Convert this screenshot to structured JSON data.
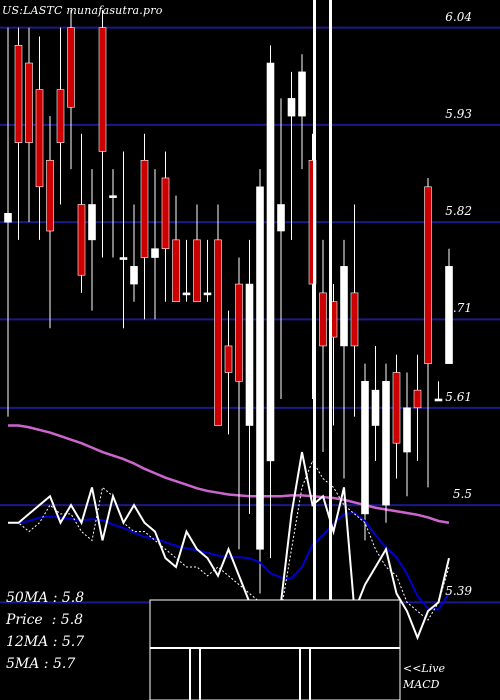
{
  "watermark": "US:LASTC munafasutra.pro",
  "colors": {
    "background": "#000000",
    "grid": "#1a1a8a",
    "up_candle": "#ffffff",
    "down_candle": "#cc0000",
    "ma_long": "#cc66cc",
    "ma_mid": "#0000cc",
    "ma_short": "#ffffff",
    "macd_panel": "#000000"
  },
  "info": {
    "ma50": "50MA : 5.8",
    "price": "Price  : 5.8",
    "ma12": "12MA : 5.7",
    "ma5": "5MA : 5.7"
  },
  "macd": {
    "live": "<<Live",
    "label": "MACD"
  },
  "chart_data": {
    "type": "candlestick",
    "ylim": [
      5.37,
      6.06
    ],
    "y_ticks": [
      "6.04",
      "5.93",
      "5.82",
      "5.71",
      "5.61",
      "5.5",
      "5.39"
    ],
    "y_tick_values": [
      6.04,
      5.93,
      5.82,
      5.71,
      5.61,
      5.5,
      5.39
    ],
    "candles": [
      {
        "o": 5.82,
        "c": 5.83,
        "h": 6.04,
        "l": 5.6,
        "up": true
      },
      {
        "o": 6.02,
        "c": 5.91,
        "h": 6.04,
        "l": 5.8,
        "up": false
      },
      {
        "o": 6.0,
        "c": 5.91,
        "h": 6.04,
        "l": 5.82,
        "up": false
      },
      {
        "o": 5.97,
        "c": 5.86,
        "h": 6.03,
        "l": 5.8,
        "up": false
      },
      {
        "o": 5.89,
        "c": 5.81,
        "h": 5.94,
        "l": 5.7,
        "up": false
      },
      {
        "o": 5.97,
        "c": 5.91,
        "h": 6.04,
        "l": 5.84,
        "up": false
      },
      {
        "o": 6.04,
        "c": 5.95,
        "h": 6.06,
        "l": 5.88,
        "up": false
      },
      {
        "o": 5.84,
        "c": 5.76,
        "h": 5.92,
        "l": 5.74,
        "up": false
      },
      {
        "o": 5.8,
        "c": 5.84,
        "h": 5.88,
        "l": 5.72,
        "up": true
      },
      {
        "o": 6.04,
        "c": 5.9,
        "h": 6.06,
        "l": 5.78,
        "up": false
      },
      {
        "o": 5.85,
        "c": 5.85,
        "h": 5.88,
        "l": 5.78,
        "up": true
      },
      {
        "o": 5.78,
        "c": 5.78,
        "h": 5.9,
        "l": 5.7,
        "up": true
      },
      {
        "o": 5.75,
        "c": 5.77,
        "h": 5.84,
        "l": 5.73,
        "up": true
      },
      {
        "o": 5.89,
        "c": 5.78,
        "h": 5.92,
        "l": 5.71,
        "up": false
      },
      {
        "o": 5.78,
        "c": 5.79,
        "h": 5.88,
        "l": 5.71,
        "up": true
      },
      {
        "o": 5.87,
        "c": 5.79,
        "h": 5.9,
        "l": 5.73,
        "up": false
      },
      {
        "o": 5.8,
        "c": 5.73,
        "h": 5.85,
        "l": 5.73,
        "up": false
      },
      {
        "o": 5.74,
        "c": 5.74,
        "h": 5.8,
        "l": 5.73,
        "up": true
      },
      {
        "o": 5.8,
        "c": 5.73,
        "h": 5.84,
        "l": 5.73,
        "up": false
      },
      {
        "o": 5.74,
        "c": 5.74,
        "h": 5.8,
        "l": 5.73,
        "up": true
      },
      {
        "o": 5.8,
        "c": 5.59,
        "h": 5.84,
        "l": 5.59,
        "up": false
      },
      {
        "o": 5.68,
        "c": 5.65,
        "h": 5.72,
        "l": 5.58,
        "up": false
      },
      {
        "o": 5.75,
        "c": 5.64,
        "h": 5.78,
        "l": 5.45,
        "up": false
      },
      {
        "o": 5.59,
        "c": 5.75,
        "h": 5.8,
        "l": 5.49,
        "up": true
      },
      {
        "o": 5.45,
        "c": 5.86,
        "h": 5.88,
        "l": 5.4,
        "up": true
      },
      {
        "o": 5.55,
        "c": 6.0,
        "h": 6.02,
        "l": 5.44,
        "up": true
      },
      {
        "o": 5.81,
        "c": 5.84,
        "h": 5.96,
        "l": 5.62,
        "up": true
      },
      {
        "o": 5.94,
        "c": 5.96,
        "h": 5.99,
        "l": 5.8,
        "up": true
      },
      {
        "o": 5.94,
        "c": 5.99,
        "h": 6.01,
        "l": 5.88,
        "up": true
      },
      {
        "o": 5.89,
        "c": 5.75,
        "h": 5.92,
        "l": 5.62,
        "up": false
      },
      {
        "o": 5.74,
        "c": 5.68,
        "h": 5.8,
        "l": 5.56,
        "up": false
      },
      {
        "o": 5.73,
        "c": 5.69,
        "h": 5.75,
        "l": 5.59,
        "up": false
      },
      {
        "o": 5.68,
        "c": 5.77,
        "h": 5.8,
        "l": 5.53,
        "up": true
      },
      {
        "o": 5.74,
        "c": 5.68,
        "h": 5.84,
        "l": 5.6,
        "up": false
      },
      {
        "o": 5.49,
        "c": 5.64,
        "h": 5.66,
        "l": 5.46,
        "up": true
      },
      {
        "o": 5.59,
        "c": 5.63,
        "h": 5.68,
        "l": 5.55,
        "up": true
      },
      {
        "o": 5.5,
        "c": 5.64,
        "h": 5.66,
        "l": 5.48,
        "up": true
      },
      {
        "o": 5.65,
        "c": 5.57,
        "h": 5.67,
        "l": 5.53,
        "up": false
      },
      {
        "o": 5.56,
        "c": 5.61,
        "h": 5.65,
        "l": 5.51,
        "up": true
      },
      {
        "o": 5.63,
        "c": 5.61,
        "h": 5.67,
        "l": 5.55,
        "up": false
      },
      {
        "o": 5.86,
        "c": 5.66,
        "h": 5.87,
        "l": 5.52,
        "up": false
      },
      {
        "o": 5.62,
        "c": 5.62,
        "h": 5.64,
        "l": 5.62,
        "up": true
      },
      {
        "o": 5.66,
        "c": 5.77,
        "h": 5.79,
        "l": 5.66,
        "up": true
      }
    ],
    "ma_long": [
      5.59,
      5.59,
      5.588,
      5.585,
      5.582,
      5.578,
      5.574,
      5.57,
      5.565,
      5.56,
      5.556,
      5.552,
      5.547,
      5.541,
      5.536,
      5.531,
      5.527,
      5.523,
      5.519,
      5.516,
      5.514,
      5.512,
      5.511,
      5.51,
      5.51,
      5.51,
      5.51,
      5.511,
      5.511,
      5.51,
      5.509,
      5.508,
      5.506,
      5.503,
      5.5,
      5.497,
      5.495,
      5.493,
      5.491,
      5.489,
      5.486,
      5.482,
      5.48
    ],
    "ma_mid": [
      5.48,
      5.48,
      5.482,
      5.486,
      5.487,
      5.486,
      5.484,
      5.483,
      5.484,
      5.483,
      5.478,
      5.474,
      5.469,
      5.464,
      5.462,
      5.458,
      5.454,
      5.451,
      5.449,
      5.446,
      5.443,
      5.441,
      5.441,
      5.44,
      5.435,
      5.423,
      5.418,
      5.417,
      5.43,
      5.455,
      5.466,
      5.479,
      5.49,
      5.491,
      5.482,
      5.466,
      5.452,
      5.441,
      5.422,
      5.397,
      5.383,
      5.382,
      5.4
    ],
    "ma_short": [
      5.48,
      5.48,
      5.47,
      5.48,
      5.5,
      5.49,
      5.49,
      5.47,
      5.46,
      5.52,
      5.51,
      5.48,
      5.47,
      5.47,
      5.46,
      5.45,
      5.44,
      5.43,
      5.43,
      5.42,
      5.43,
      5.42,
      5.41,
      5.4,
      5.39,
      5.38,
      5.38,
      5.45,
      5.52,
      5.55,
      5.53,
      5.52,
      5.5,
      5.49,
      5.48,
      5.45,
      5.43,
      5.42,
      5.39,
      5.38,
      5.37,
      5.39,
      5.43
    ],
    "price_line": [
      5.48,
      5.48,
      5.49,
      5.5,
      5.51,
      5.48,
      5.5,
      5.48,
      5.52,
      5.46,
      5.51,
      5.48,
      5.5,
      5.48,
      5.47,
      5.44,
      5.43,
      5.47,
      5.45,
      5.44,
      5.42,
      5.45,
      5.42,
      5.39,
      5.37,
      5.39,
      5.39,
      5.49,
      5.56,
      5.5,
      5.51,
      5.47,
      5.52,
      5.38,
      5.41,
      5.43,
      5.45,
      5.4,
      5.38,
      5.35,
      5.38,
      5.39,
      5.44
    ]
  }
}
